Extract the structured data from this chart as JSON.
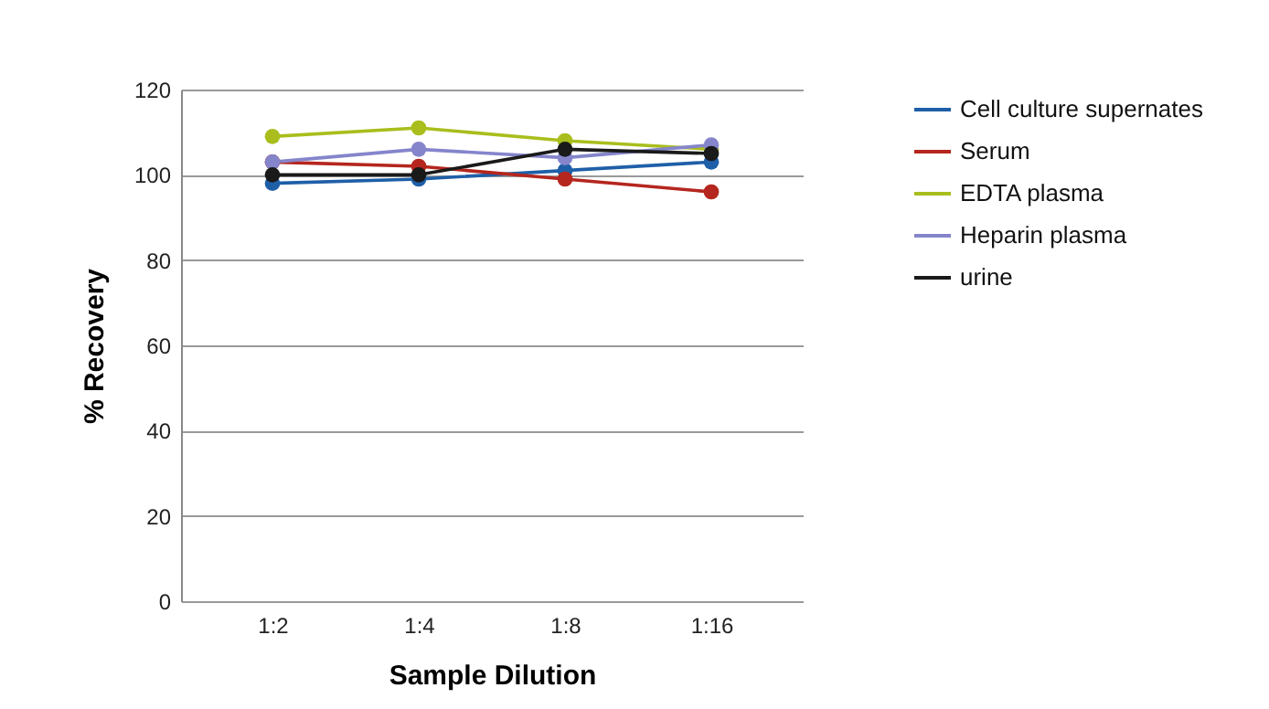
{
  "chart_data": {
    "type": "line",
    "xlabel": "Sample Dilution",
    "ylabel": "% Recovery",
    "categories": [
      "1:2",
      "1:4",
      "1:8",
      "1:16"
    ],
    "ylim": [
      0,
      120
    ],
    "yticks": [
      0,
      20,
      40,
      60,
      80,
      100,
      120
    ],
    "grid": "y",
    "legend": "right",
    "marker": "circle",
    "series": [
      {
        "name": "Cell culture supernates",
        "color": "#1f5fa8",
        "values": [
          98,
          99,
          101,
          103
        ]
      },
      {
        "name": "Serum",
        "color": "#b5261e",
        "values": [
          103,
          102,
          99,
          96
        ]
      },
      {
        "name": "EDTA plasma",
        "color": "#a9be1c",
        "values": [
          109,
          111,
          108,
          106
        ]
      },
      {
        "name": "Heparin plasma",
        "color": "#8585cc",
        "values": [
          103,
          106,
          104,
          107
        ]
      },
      {
        "name": "urine",
        "color": "#1a1a1a",
        "values": [
          100,
          100,
          106,
          105
        ]
      }
    ]
  }
}
